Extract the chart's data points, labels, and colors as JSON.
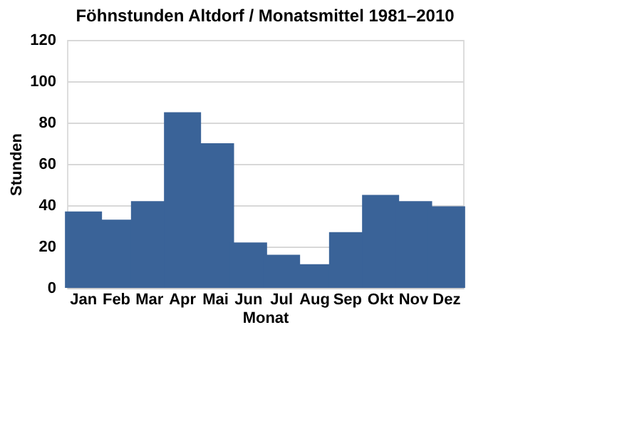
{
  "chart_data": {
    "type": "bar",
    "title": "Föhnstunden Altdorf  /  Monatsmittel 1981–2010",
    "xlabel": "Monat",
    "ylabel": "Stunden",
    "categories": [
      "Jan",
      "Feb",
      "Mar",
      "Apr",
      "Mai",
      "Jun",
      "Jul",
      "Aug",
      "Sep",
      "Okt",
      "Nov",
      "Dez"
    ],
    "values": [
      37,
      33,
      42,
      85,
      70,
      22,
      16,
      11.5,
      27,
      45,
      42,
      39.5
    ],
    "color": "#3a6398",
    "ylim": [
      0,
      120
    ],
    "yticks": [
      0,
      20,
      40,
      60,
      80,
      100,
      120
    ],
    "grid": "y"
  }
}
